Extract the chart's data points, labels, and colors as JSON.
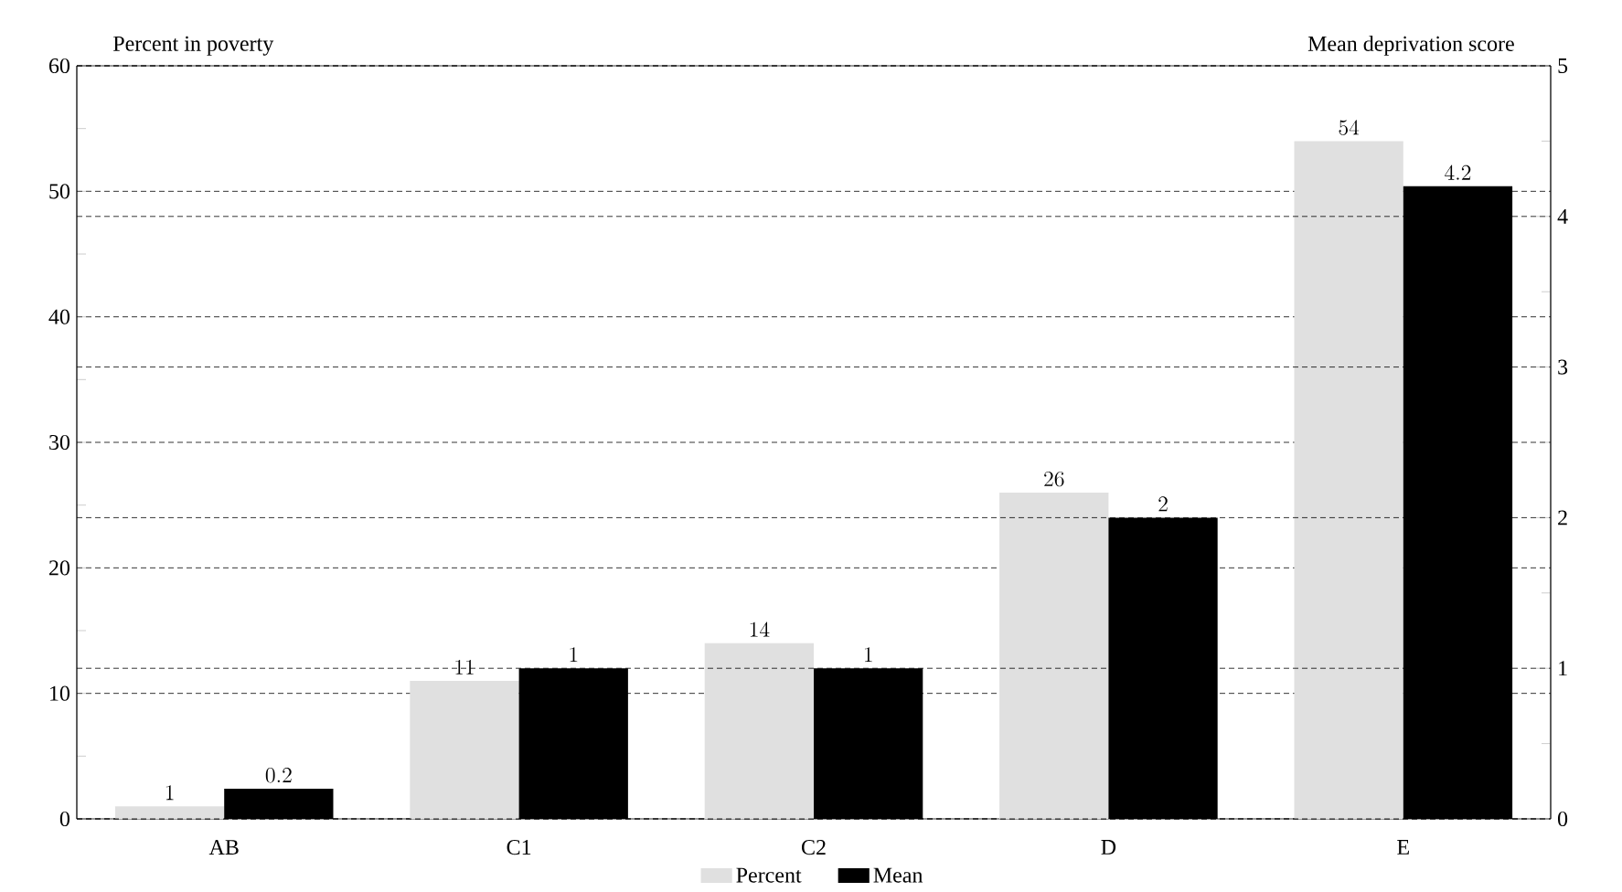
{
  "chart_data": {
    "type": "bar",
    "ylabel": "Percent in poverty",
    "y2label": "Mean deprivation score",
    "categories": [
      "AB",
      "C1",
      "C2",
      "D",
      "E"
    ],
    "series": [
      {
        "name": "Percent",
        "color": "#e0e0e0",
        "values": [
          1,
          11,
          14,
          26,
          54
        ]
      },
      {
        "name": "Mean",
        "color": "#000000",
        "axis": "y2",
        "values": [
          0.2,
          1,
          1,
          2,
          4.2
        ]
      }
    ],
    "ylim": [
      0,
      60
    ],
    "yticks": [
      0,
      10,
      20,
      30,
      40,
      50,
      60
    ],
    "y2lim": [
      0,
      5
    ],
    "y2ticks": [
      0,
      1,
      2,
      3,
      4,
      5
    ],
    "grid": true,
    "legend": "bottom",
    "data_labels": true
  }
}
